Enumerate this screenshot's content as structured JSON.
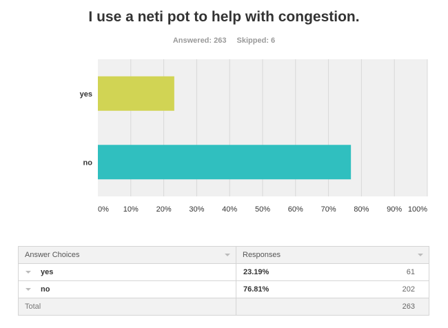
{
  "chart_data": {
    "type": "bar",
    "orientation": "horizontal",
    "title": "I use a neti pot to help with congestion.",
    "answered_label": "Answered: 263",
    "skipped_label": "Skipped: 6",
    "categories": [
      "yes",
      "no"
    ],
    "values": [
      23.19,
      76.81
    ],
    "colors": [
      "#d1d454",
      "#30bfbf"
    ],
    "xlim": [
      0,
      100
    ],
    "xticks": [
      0,
      10,
      20,
      30,
      40,
      50,
      60,
      70,
      80,
      90,
      100
    ],
    "xtick_labels": [
      "0%",
      "10%",
      "20%",
      "30%",
      "40%",
      "50%",
      "60%",
      "70%",
      "80%",
      "90%",
      "100%"
    ],
    "grid": true
  },
  "table": {
    "header_choices": "Answer Choices",
    "header_responses": "Responses",
    "rows": [
      {
        "choice": "yes",
        "percent": "23.19%",
        "count": "61"
      },
      {
        "choice": "no",
        "percent": "76.81%",
        "count": "202"
      }
    ],
    "total_label": "Total",
    "total_count": "263"
  },
  "colors": {
    "plot_background": "#f0f0f0",
    "grid": "#d8d8d8"
  }
}
